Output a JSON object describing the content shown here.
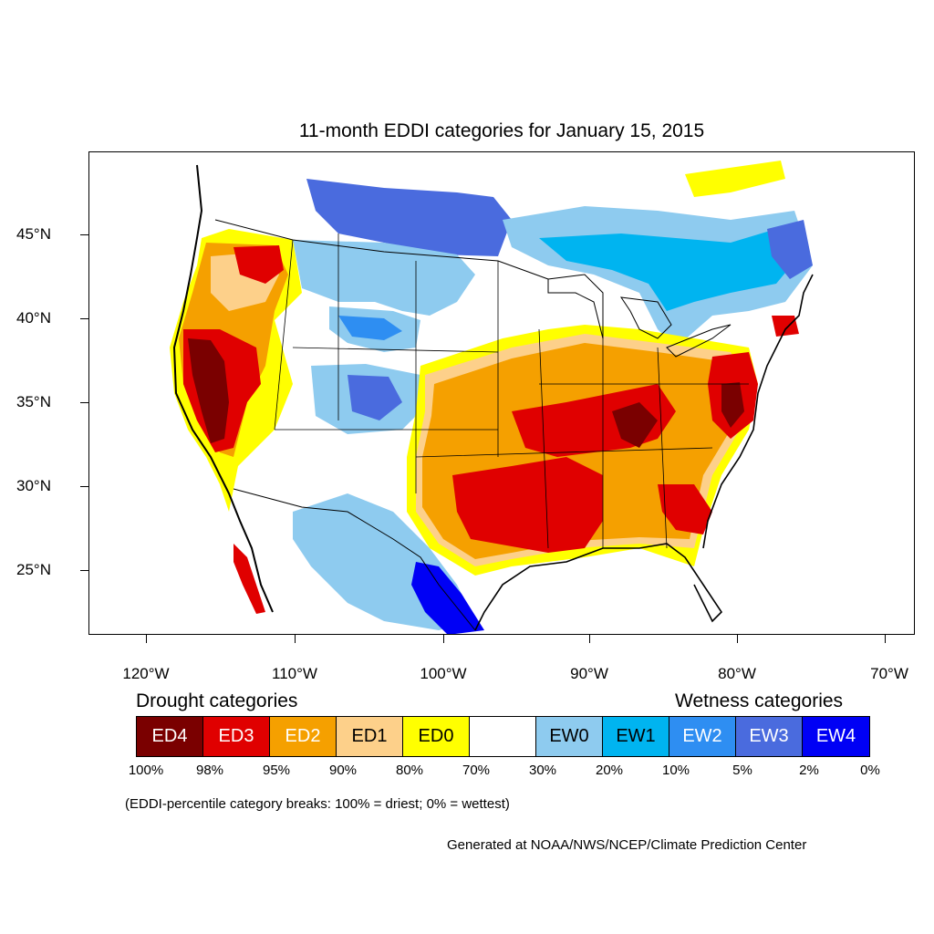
{
  "title": "11-month EDDI categories for January 15, 2015",
  "lat_labels": [
    "45°N",
    "40°N",
    "35°N",
    "30°N",
    "25°N"
  ],
  "lon_labels": [
    "120°W",
    "110°W",
    "100°W",
    "90°W",
    "80°W",
    "70°W"
  ],
  "legend": {
    "drought_heading": "Drought categories",
    "wetness_heading": "Wetness categories",
    "categories": [
      {
        "label": "ED4",
        "color": "#7a0000"
      },
      {
        "label": "ED3",
        "color": "#e00000"
      },
      {
        "label": "ED2",
        "color": "#f5a000"
      },
      {
        "label": "ED1",
        "color": "#fdd08a"
      },
      {
        "label": "ED0",
        "color": "#ffff00"
      },
      {
        "label": "",
        "color": "#ffffff"
      },
      {
        "label": "EW0",
        "color": "#8ecbef"
      },
      {
        "label": "EW1",
        "color": "#00b4f0"
      },
      {
        "label": "EW2",
        "color": "#2e8ef2"
      },
      {
        "label": "EW3",
        "color": "#4a6bde"
      },
      {
        "label": "EW4",
        "color": "#0000f5"
      }
    ],
    "percentiles": [
      "100%",
      "98%",
      "95%",
      "90%",
      "80%",
      "70%",
      "30%",
      "20%",
      "10%",
      "5%",
      "2%",
      "0%"
    ]
  },
  "note": "(EDDI-percentile category breaks: 100% = driest; 0% = wettest)",
  "credit": "Generated at NOAA/NWS/NCEP/Climate Prediction Center"
}
